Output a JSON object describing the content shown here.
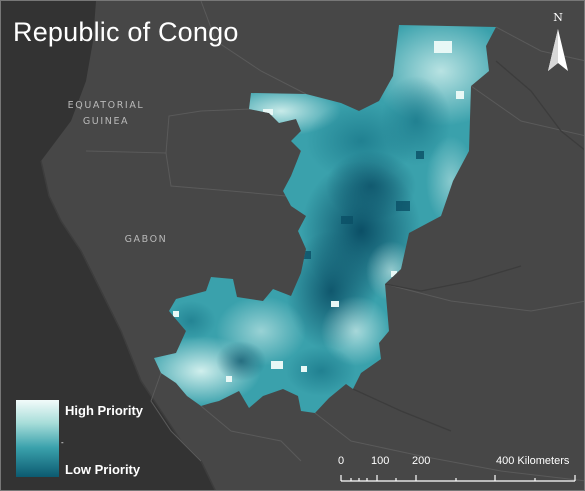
{
  "title": "Republic of Congo",
  "labels": {
    "equatorial_guinea_1": "EQUATORIAL",
    "equatorial_guinea_2": "GUINEA",
    "gabon": "GABON"
  },
  "north_arrow": {
    "letter": "N"
  },
  "legend": {
    "high": "High Priority",
    "low": "Low Priority",
    "high_color": "#f2fbfa",
    "low_color": "#0c5a70"
  },
  "scale_bar": {
    "labels": [
      "0",
      "100",
      "200",
      "400 Kilometers"
    ]
  },
  "colors": {
    "land": "#4a4a4a",
    "water": "#333333",
    "priority_mid": "#3aa1ac",
    "priority_dark": "#0e5f74"
  }
}
